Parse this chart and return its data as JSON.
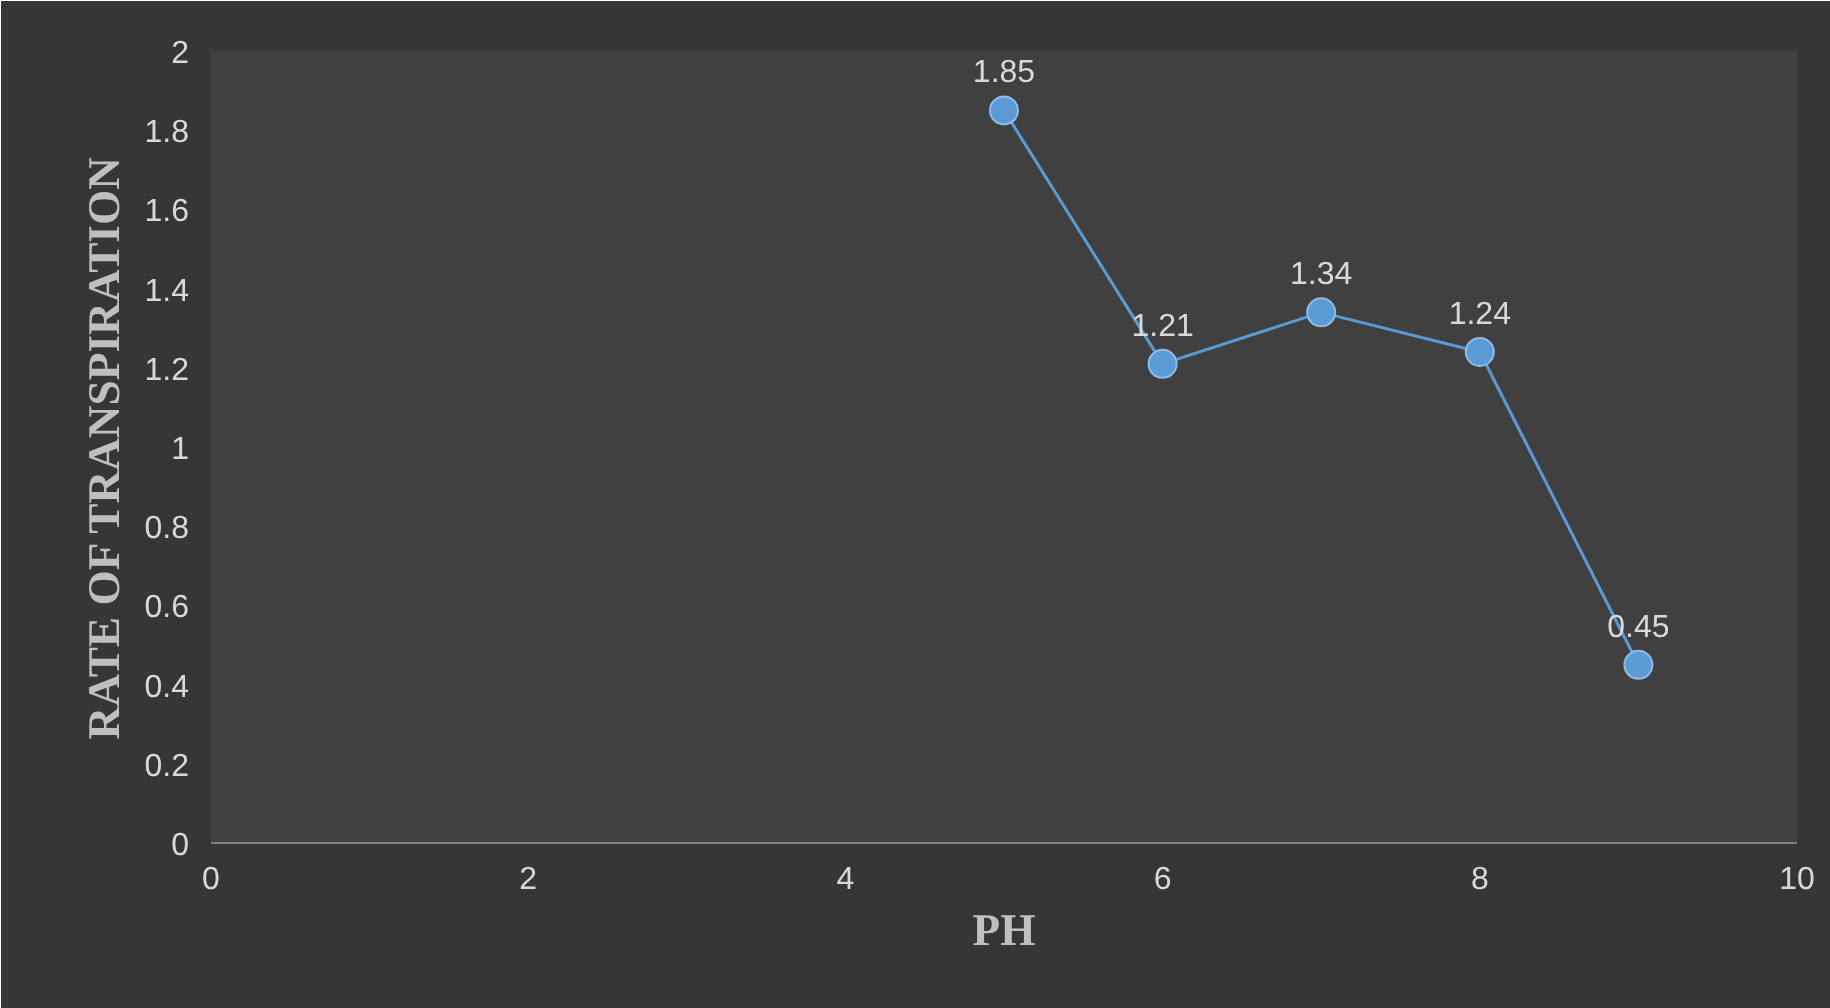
{
  "chart_data": {
    "type": "line",
    "xlabel": "PH",
    "ylabel": "RATE OF TRANSPIRATION",
    "x": [
      5,
      6,
      7,
      8,
      9
    ],
    "values": [
      1.85,
      1.21,
      1.34,
      1.24,
      0.45
    ],
    "color": "#5b9bd5",
    "marker": "circle",
    "line_style": "solid",
    "data_labels": true,
    "xlim": [
      0,
      10
    ],
    "xticks": [
      0,
      2,
      4,
      6,
      8,
      10
    ],
    "ylim": [
      0,
      2
    ],
    "yticks": [
      0,
      0.2,
      0.4,
      0.6,
      0.8,
      1,
      1.2,
      1.4,
      1.6,
      1.8,
      2
    ]
  }
}
